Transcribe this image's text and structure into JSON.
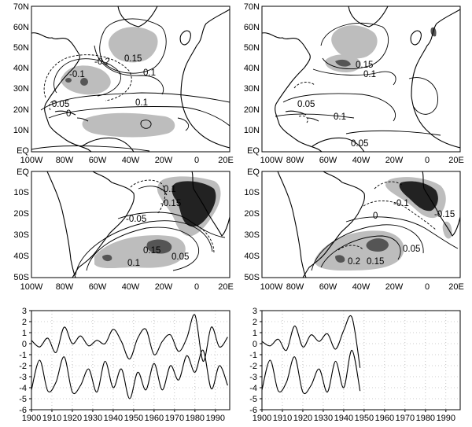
{
  "maps": {
    "north": {
      "lat_labels": [
        "70N",
        "60N",
        "50N",
        "40N",
        "30N",
        "20N",
        "10N",
        "EQ"
      ],
      "lon_labels": [
        "100W",
        "80W",
        "60W",
        "40W",
        "20W",
        "0",
        "20E"
      ]
    },
    "south": {
      "lat_labels": [
        "EQ",
        "10S",
        "20S",
        "30S",
        "40S",
        "50S"
      ],
      "lon_labels": [
        "100W",
        "80W",
        "60W",
        "40W",
        "20W",
        "0",
        "20E"
      ]
    },
    "panels": [
      {
        "id": "north-left",
        "contour_labels": [
          "0.15",
          "-0.2",
          "-0.1",
          "0.1",
          "-0.05",
          "0",
          "0.1"
        ]
      },
      {
        "id": "north-right",
        "contour_labels": [
          "0.15",
          "0.1",
          "0.05",
          "0.1",
          "0.05"
        ]
      },
      {
        "id": "south-left",
        "contour_labels": [
          "-0.1",
          "-0.15",
          "-0.05",
          "0.15",
          "0.05",
          "0.1"
        ]
      },
      {
        "id": "south-right",
        "contour_labels": [
          "-0.1",
          "-0.15",
          "0",
          "0.05",
          "0.2",
          "0.15"
        ]
      }
    ]
  },
  "chart_data": [
    {
      "type": "line",
      "x": [
        1900,
        1904,
        1908,
        1912,
        1916,
        1920,
        1924,
        1928,
        1932,
        1936,
        1940,
        1944,
        1948,
        1952,
        1956,
        1960,
        1964,
        1968,
        1972,
        1976,
        1980,
        1984,
        1988,
        1992,
        1996
      ],
      "series": [
        {
          "values": [
            0.3,
            -0.3,
            0.5,
            -0.8,
            1.5,
            0.0,
            0.7,
            -0.2,
            0.3,
            0.0,
            1.3,
            0.2,
            -1.4,
            0.5,
            1.3,
            -1.0,
            0.2,
            0.8,
            -0.7,
            0.5,
            2.6,
            -1.6,
            1.5,
            -0.3,
            0.6
          ]
        },
        {
          "values": [
            -4.2,
            -1.5,
            -4.3,
            -3.5,
            -1.2,
            -4.4,
            -3.8,
            -2.3,
            -4.4,
            -1.6,
            -4.0,
            -2.3,
            -5.0,
            -2.6,
            -4.2,
            -1.8,
            -4.2,
            -2.0,
            -3.3,
            -1.1,
            -2.6,
            -0.6,
            -4.1,
            -2.0,
            -3.8
          ]
        }
      ],
      "xlim": [
        1900,
        1997
      ],
      "ylim": [
        -6,
        3
      ],
      "xticks": [
        "1900",
        "1910",
        "1920",
        "1930",
        "1940",
        "1950",
        "1960",
        "1970",
        "1980",
        "1990"
      ],
      "yticks": [
        "3",
        "2",
        "1",
        "0",
        "-1",
        "-2",
        "-3",
        "-4",
        "-5",
        "-6"
      ]
    },
    {
      "type": "line",
      "x": [
        1900,
        1904,
        1908,
        1912,
        1916,
        1920,
        1924,
        1928,
        1932,
        1936,
        1940,
        1944,
        1948
      ],
      "series": [
        {
          "values": [
            0.2,
            -0.2,
            0.4,
            -0.6,
            1.6,
            -0.3,
            0.8,
            0.2,
            0.9,
            -0.5,
            1.2,
            2.4,
            -2.2
          ]
        },
        {
          "values": [
            -4.2,
            -1.5,
            -4.3,
            -3.5,
            -1.2,
            -4.4,
            -3.8,
            -2.3,
            -4.4,
            -1.6,
            -4.0,
            -0.6,
            -4.3
          ]
        }
      ],
      "xlim": [
        1900,
        1997
      ],
      "ylim": [
        -6,
        3
      ],
      "xticks": [
        "1900",
        "1910",
        "1920",
        "1930",
        "1940",
        "1950",
        "1960",
        "1970",
        "1980",
        "1990"
      ],
      "yticks": [
        "3",
        "2",
        "1",
        "0",
        "-1",
        "-2",
        "-3",
        "-4",
        "-5",
        "-6"
      ]
    }
  ]
}
